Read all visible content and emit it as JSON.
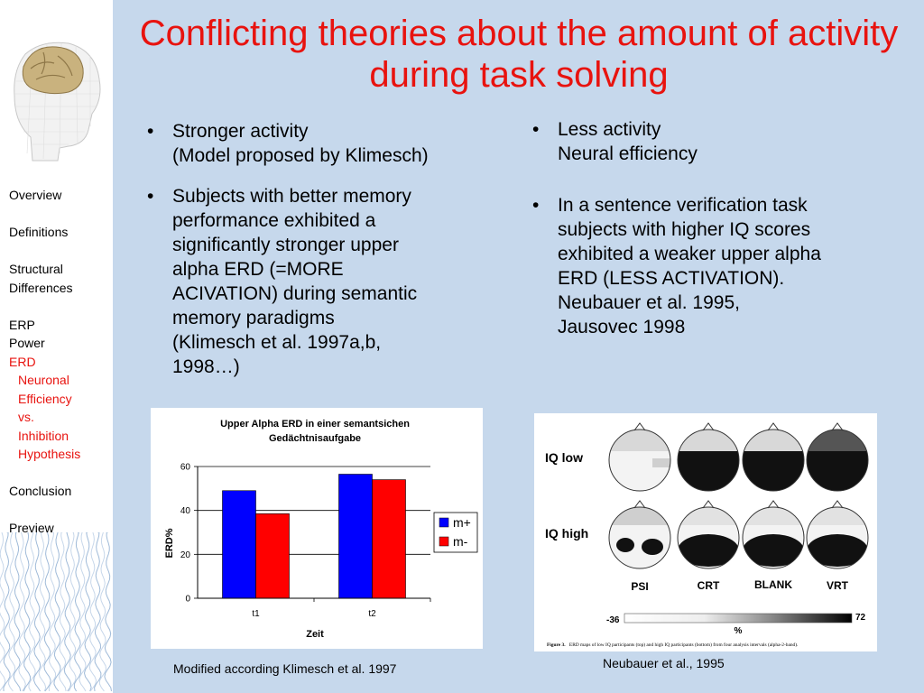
{
  "slide": {
    "title": "Conflicting theories about the amount of activity during task solving"
  },
  "nav": {
    "items": [
      {
        "label": "Overview"
      },
      {
        "label": "Definitions"
      },
      {
        "label": "Structural"
      },
      {
        "label": "Differences"
      },
      {
        "label": "ERP"
      },
      {
        "label": "Power"
      },
      {
        "label": "ERD"
      },
      {
        "label": "Neuronal"
      },
      {
        "label": "Efficiency"
      },
      {
        "label": "vs."
      },
      {
        "label": "Inhibition"
      },
      {
        "label": "Hypothesis"
      },
      {
        "label": "Conclusion"
      },
      {
        "label": "Preview"
      }
    ],
    "active_color": "#e8130f"
  },
  "left": {
    "bullet1_line1": "Stronger activity",
    "bullet1_line2": "(Model proposed by Klimesch)",
    "bullet2": [
      "Subjects with better memory",
      "performance exhibited a",
      "significantly stronger upper",
      "alpha ERD (=MORE",
      "ACIVATION) during semantic",
      "memory paradigms",
      "(Klimesch et al. 1997a,b,",
      "1998…)"
    ]
  },
  "right": {
    "bullet1_line1": "Less activity",
    "bullet1_line2": "Neural efficiency",
    "bullet2": [
      "In a sentence verification task",
      "subjects with higher IQ scores",
      "exhibited a weaker upper alpha",
      "ERD (LESS ACTIVATION).",
      "Neubauer et al. 1995,",
      "Jausovec 1998"
    ]
  },
  "chart_data": {
    "type": "bar",
    "title_line1": "Upper Alpha ERD in einer semantsichen",
    "title_line2": "Gedächtnisaufgabe",
    "categories": [
      "t1",
      "t2"
    ],
    "series": [
      {
        "name": "m+",
        "values": [
          49,
          56.5
        ],
        "color": "#0000ff"
      },
      {
        "name": "m-",
        "values": [
          38.5,
          54
        ],
        "color": "#ff0000"
      }
    ],
    "ylim": [
      0,
      60
    ],
    "yticks": [
      "0",
      "20",
      "40",
      "60"
    ],
    "ylabel": "ERD%",
    "xlabel": "Zeit",
    "grid": true,
    "legend": "right"
  },
  "figure": {
    "iq_low": "IQ low",
    "iq_high": "IQ high",
    "conditions": [
      "PSI",
      "CRT",
      "BLANK",
      "VRT"
    ],
    "scale_min": "-36",
    "scale_max": "72",
    "scale_unit": "%",
    "caption_bold": "Figure 3.",
    "caption_text": "ERD maps of low IQ participants (top) and high IQ participants (bottom) from four analysis intervals (alpha-2-band)."
  },
  "captions": {
    "left": "Modified according Klimesch et al. 1997",
    "right": "Neubauer et al., 1995"
  }
}
